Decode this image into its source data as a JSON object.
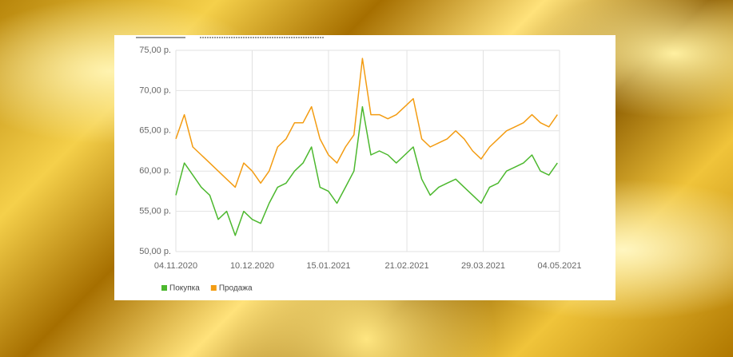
{
  "chart_data": {
    "type": "line",
    "x": [
      "2020-11-04",
      "2020-11-08",
      "2020-11-12",
      "2020-11-16",
      "2020-11-20",
      "2020-11-24",
      "2020-11-28",
      "2020-12-02",
      "2020-12-06",
      "2020-12-10",
      "2020-12-14",
      "2020-12-18",
      "2020-12-22",
      "2020-12-26",
      "2020-12-30",
      "2021-01-03",
      "2021-01-07",
      "2021-01-11",
      "2021-01-15",
      "2021-01-19",
      "2021-01-23",
      "2021-01-27",
      "2021-01-31",
      "2021-02-04",
      "2021-02-08",
      "2021-02-12",
      "2021-02-16",
      "2021-02-20",
      "2021-02-24",
      "2021-02-28",
      "2021-03-04",
      "2021-03-08",
      "2021-03-12",
      "2021-03-16",
      "2021-03-20",
      "2021-03-24",
      "2021-03-28",
      "2021-04-01",
      "2021-04-05",
      "2021-04-09",
      "2021-04-13",
      "2021-04-17",
      "2021-04-21",
      "2021-04-25",
      "2021-04-29",
      "2021-05-03"
    ],
    "series": [
      {
        "name": "Покупка",
        "color": "#4cb82e",
        "values": [
          57,
          61,
          59.5,
          58,
          57,
          54,
          55,
          52,
          55,
          54,
          53.5,
          56,
          58,
          58.5,
          60,
          61,
          63,
          58,
          57.5,
          56,
          58,
          60,
          68,
          62,
          62.5,
          62,
          61,
          62,
          63,
          59,
          57,
          58,
          58.5,
          59,
          58,
          57,
          56,
          58,
          58.5,
          60,
          60.5,
          61,
          62,
          60,
          59.5,
          61
        ]
      },
      {
        "name": "Продажа",
        "color": "#f39c12",
        "values": [
          64,
          67,
          63,
          62,
          61,
          60,
          59,
          58,
          61,
          60,
          58.5,
          60,
          63,
          64,
          66,
          66,
          68,
          64,
          62,
          61,
          63,
          64.5,
          74,
          67,
          67,
          66.5,
          67,
          68,
          69,
          64,
          63,
          63.5,
          64,
          65,
          64,
          62.5,
          61.5,
          63,
          64,
          65,
          65.5,
          66,
          67,
          66,
          65.5,
          67
        ]
      }
    ],
    "xlim": [
      "2020-11-04",
      "2021-05-04"
    ],
    "xticks": [
      {
        "value": "2020-11-04",
        "label": "04.11.2020"
      },
      {
        "value": "2020-12-10",
        "label": "10.12.2020"
      },
      {
        "value": "2021-01-15",
        "label": "15.01.2021"
      },
      {
        "value": "2021-02-21",
        "label": "21.02.2021"
      },
      {
        "value": "2021-03-29",
        "label": "29.03.2021"
      },
      {
        "value": "2021-05-04",
        "label": "04.05.2021"
      }
    ],
    "ylim": [
      50,
      75
    ],
    "yticks": [
      {
        "value": 50,
        "label": "50,00 р."
      },
      {
        "value": 55,
        "label": "55,00 р."
      },
      {
        "value": 60,
        "label": "60,00 р."
      },
      {
        "value": 65,
        "label": "65,00 р."
      },
      {
        "value": 70,
        "label": "70,00 р."
      },
      {
        "value": 75,
        "label": "75,00 р."
      }
    ],
    "grid": true,
    "legend": "bottom-left"
  }
}
